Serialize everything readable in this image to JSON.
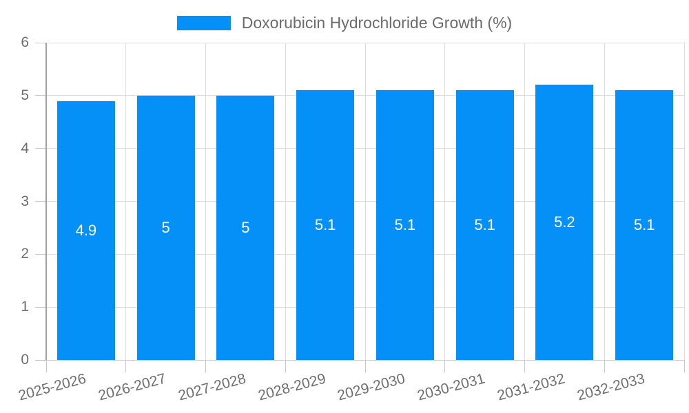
{
  "legend": {
    "label": "Doxorubicin Hydrochloride Growth (%)"
  },
  "colors": {
    "bar": "#0590f8",
    "bar_label_text": "#ffffff",
    "grid": "#dcdcdc",
    "baseline": "#d0d0d0",
    "axis_line": "#a0a0a0",
    "tick": "#c8c8c8",
    "axis_text": "#6e6e6e",
    "legend_text": "#6b6b6b"
  },
  "chart_data": {
    "type": "bar",
    "title": "Doxorubicin Hydrochloride Growth (%)",
    "categories": [
      "2025-2026",
      "2026-2027",
      "2027-2028",
      "2028-2029",
      "2029-2030",
      "2030-2031",
      "2031-2032",
      "2032-2033"
    ],
    "values": [
      4.9,
      5,
      5,
      5.1,
      5.1,
      5.1,
      5.2,
      5.1
    ],
    "labels": [
      "4.9",
      "5",
      "5",
      "5.1",
      "5.1",
      "5.1",
      "5.2",
      "5.1"
    ],
    "xlabel": "",
    "ylabel": "",
    "ylim": [
      0,
      6
    ],
    "yticks": [
      0,
      1,
      2,
      3,
      4,
      5,
      6
    ],
    "grid": true,
    "legend_position": "top",
    "x_tick_rotation_deg": -15
  }
}
